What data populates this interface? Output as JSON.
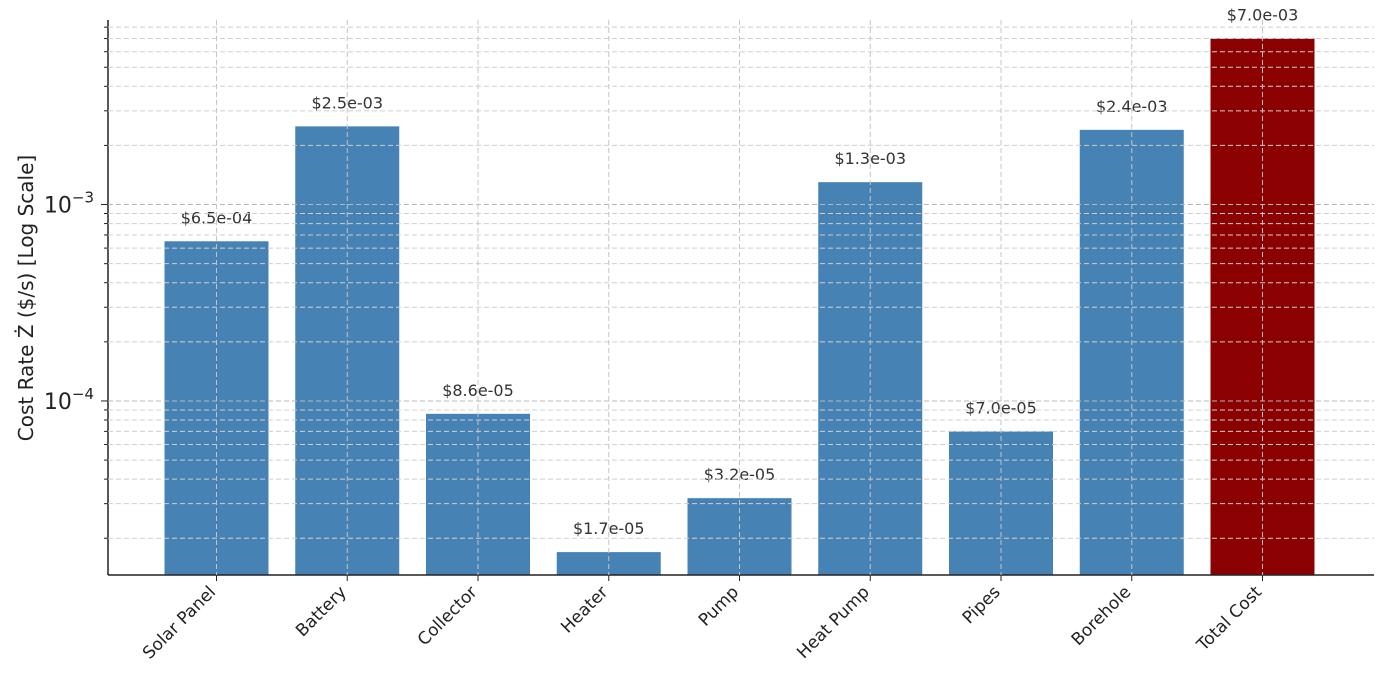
{
  "chart_data": {
    "type": "bar",
    "title": "",
    "xlabel": "",
    "ylabel": "Cost Rate Ż ($/s) [Log Scale]",
    "yscale": "log",
    "ylim": [
      1.3e-05,
      0.0087
    ],
    "grid": true,
    "categories": [
      "Solar Panel",
      "Battery",
      "Collector",
      "Heater",
      "Pump",
      "Heat Pump",
      "Pipes",
      "Borehole",
      "Total Cost"
    ],
    "values": [
      0.00065,
      0.0025,
      8.6e-05,
      1.7e-05,
      3.2e-05,
      0.0013,
      7e-05,
      0.0024,
      0.007
    ],
    "data_labels": [
      "$6.5e-04",
      "$2.5e-03",
      "$8.6e-05",
      "$1.7e-05",
      "$3.2e-05",
      "$1.3e-03",
      "$7.0e-05",
      "$2.4e-03",
      "$7.0e-03"
    ],
    "bar_colors": [
      "#4682b4",
      "#4682b4",
      "#4682b4",
      "#4682b4",
      "#4682b4",
      "#4682b4",
      "#4682b4",
      "#4682b4",
      "#8b0000"
    ],
    "y_ticks": [
      {
        "value": 0.0001,
        "base": "10",
        "exp": "−4"
      },
      {
        "value": 0.001,
        "base": "10",
        "exp": "−3"
      }
    ]
  }
}
